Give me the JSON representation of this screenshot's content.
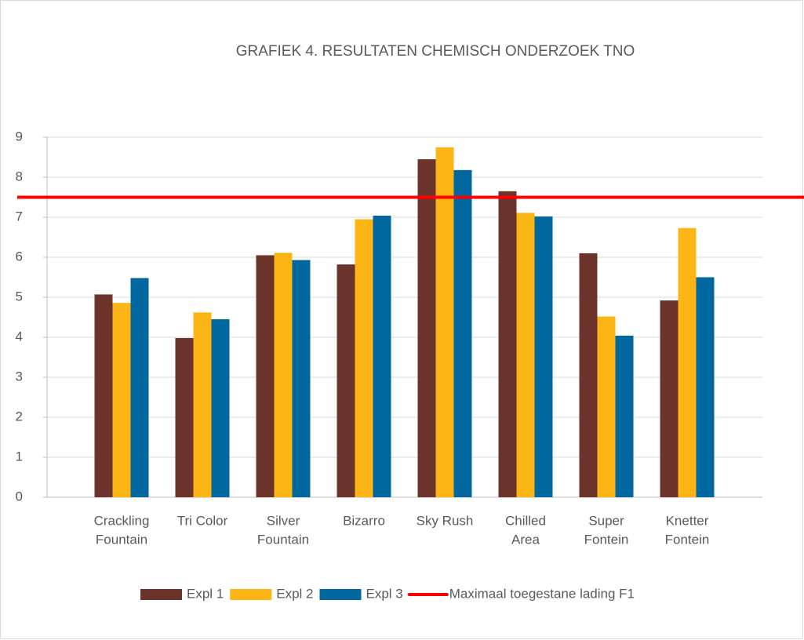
{
  "chart_data": {
    "type": "bar",
    "title": "GRAFIEK 4. RESULTATEN CHEMISCH ONDERZOEK TNO",
    "categories": [
      [
        "Crackling",
        "Fountain"
      ],
      [
        "Tri Color"
      ],
      [
        "Silver",
        "Fountain"
      ],
      [
        "Bizarro"
      ],
      [
        "Sky Rush"
      ],
      [
        "Chilled",
        "Area"
      ],
      [
        "Super",
        "Fontein"
      ],
      [
        "Knetter",
        "Fontein"
      ]
    ],
    "series": [
      {
        "name": "Expl 1",
        "color": "#6b3329",
        "values": [
          5.07,
          3.98,
          6.05,
          5.82,
          8.45,
          7.65,
          6.1,
          4.92
        ]
      },
      {
        "name": "Expl 2",
        "color": "#fdb515",
        "values": [
          4.86,
          4.62,
          6.11,
          6.95,
          8.75,
          7.11,
          4.52,
          6.73
        ]
      },
      {
        "name": "Expl 3",
        "color": "#00689e",
        "values": [
          5.48,
          4.45,
          5.93,
          7.04,
          8.18,
          7.02,
          4.04,
          5.5
        ]
      }
    ],
    "reference_line": {
      "name": "Maximaal toegestane lading F1",
      "value": 7.5,
      "color": "#ff0000"
    },
    "ylim": [
      0,
      9
    ],
    "yticks": [
      0,
      1,
      2,
      3,
      4,
      5,
      6,
      7,
      8,
      9
    ],
    "grid": true,
    "legend": "bottom"
  }
}
